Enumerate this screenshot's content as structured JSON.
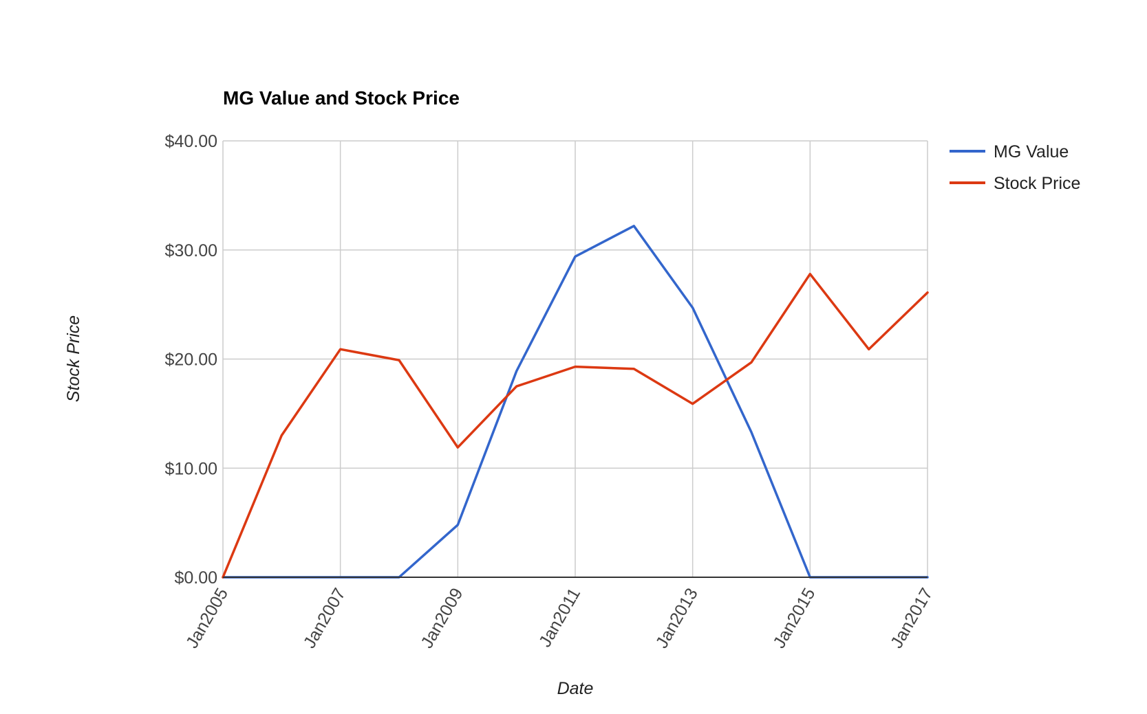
{
  "chart_data": {
    "type": "line",
    "title": "MG Value and Stock Price",
    "xlabel": "Date",
    "ylabel": "Stock Price",
    "x": [
      "Jan2005",
      "Jan2006",
      "Jan2007",
      "Jan2008",
      "Jan2009",
      "Jan2010",
      "Jan2011",
      "Jan2012",
      "Jan2013",
      "Jan2014",
      "Jan2015",
      "Jan2016",
      "Jan2017"
    ],
    "x_tick_labels": [
      "Jan2005",
      "Jan2007",
      "Jan2009",
      "Jan2011",
      "Jan2013",
      "Jan2015",
      "Jan2017"
    ],
    "y_tick_labels": [
      "$0.00",
      "$10.00",
      "$20.00",
      "$30.00",
      "$40.00"
    ],
    "ylim": [
      0,
      40
    ],
    "grid": true,
    "legend_position": "right",
    "series": [
      {
        "name": "MG Value",
        "color": "#3366cc",
        "values": [
          0,
          0,
          0,
          0,
          4.8,
          18.9,
          29.4,
          32.2,
          24.7,
          13.3,
          0,
          0,
          0
        ]
      },
      {
        "name": "Stock Price",
        "color": "#dc3912",
        "values": [
          0,
          13.0,
          20.9,
          19.9,
          11.9,
          17.5,
          19.3,
          19.1,
          15.9,
          19.7,
          27.8,
          20.9,
          26.1
        ]
      }
    ]
  }
}
